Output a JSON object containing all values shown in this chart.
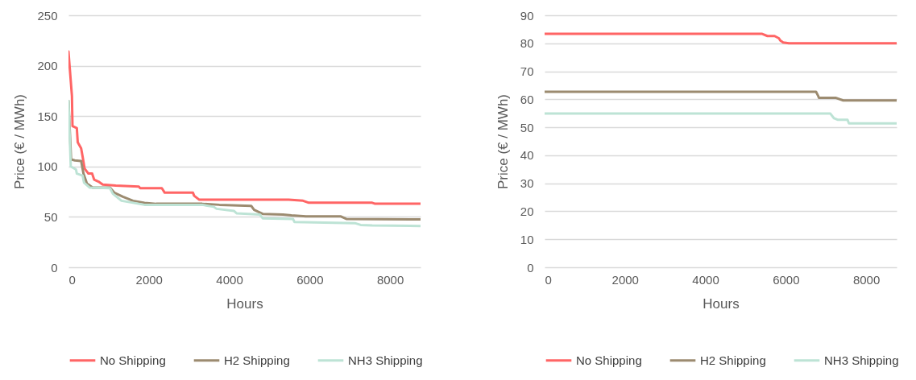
{
  "chart_data": [
    {
      "type": "line",
      "xlabel": "Hours",
      "ylabel": "Price (€ / MWh)",
      "xlim": [
        0,
        8760
      ],
      "xticks": [
        0,
        2000,
        4000,
        6000,
        8000
      ],
      "ylim": [
        0,
        250
      ],
      "yticks": [
        0,
        50,
        100,
        150,
        200,
        250
      ],
      "grid": "y",
      "legend": "bottom",
      "series": [
        {
          "name": "No Shipping",
          "color": "#ff6565",
          "x": [
            0,
            86,
            100,
            208,
            230,
            315,
            351,
            401,
            495,
            588,
            638,
            746,
            853,
            1176,
            1750,
            1785,
            2323,
            2395,
            3097,
            3126,
            3255,
            5478,
            5836,
            5980,
            7557,
            7629,
            8760
          ],
          "values": [
            214,
            170,
            140,
            138,
            124,
            118,
            110,
            98,
            93,
            93,
            87,
            85,
            82,
            81,
            80,
            78.5,
            78.5,
            74,
            74,
            71,
            67,
            67,
            66,
            64,
            64,
            63,
            63
          ]
        },
        {
          "name": "H2 Shipping",
          "color": "#9c8b70",
          "x": [
            0,
            65,
            158,
            315,
            373,
            459,
            602,
            1032,
            1140,
            1355,
            1606,
            1893,
            2180,
            3327,
            3757,
            4546,
            4618,
            4833,
            5335,
            5550,
            5908,
            6768,
            6912,
            8760
          ],
          "values": [
            165,
            107,
            106,
            105.5,
            93,
            83,
            79,
            79,
            74,
            70,
            66,
            64,
            63,
            63,
            62,
            61,
            57,
            53,
            52.3,
            51.5,
            50.6,
            50.6,
            48,
            47.5
          ]
        },
        {
          "name": "NH3 Shipping",
          "color": "#bde3d5",
          "x": [
            0,
            57,
            186,
            208,
            351,
            387,
            531,
            1032,
            1104,
            1319,
            1606,
            1893,
            3327,
            3614,
            3686,
            4116,
            4188,
            4762,
            4833,
            5586,
            5622,
            7127,
            7271,
            7557,
            8760
          ],
          "values": [
            165,
            100,
            97,
            93,
            91,
            84,
            79,
            78.5,
            73,
            66,
            64,
            62,
            62,
            60,
            58,
            56,
            53.5,
            52.3,
            48.6,
            48,
            45,
            43.8,
            42,
            41.5,
            41
          ]
        }
      ]
    },
    {
      "type": "line",
      "xlabel": "Hours",
      "ylabel": "Price (€ / MWh)",
      "xlim": [
        0,
        8760
      ],
      "xticks": [
        0,
        2000,
        4000,
        6000,
        8000
      ],
      "ylim": [
        0,
        90
      ],
      "yticks": [
        0,
        10,
        20,
        30,
        40,
        50,
        60,
        70,
        80,
        90
      ],
      "grid": "y",
      "legend": "bottom",
      "series": [
        {
          "name": "No Shipping",
          "color": "#ff6565",
          "x": [
            0,
            5402,
            5544,
            5722,
            5829,
            5864,
            5936,
            6078,
            8760
          ],
          "values": [
            83.4,
            83.4,
            82.6,
            82.6,
            81.8,
            81,
            80.3,
            80,
            80
          ]
        },
        {
          "name": "H2 Shipping",
          "color": "#9c8b70",
          "x": [
            0,
            6754,
            6804,
            6825,
            7252,
            7430,
            8760
          ],
          "values": [
            62.7,
            62.7,
            61.3,
            60.5,
            60.5,
            59.6,
            59.6
          ]
        },
        {
          "name": "NH3 Shipping",
          "color": "#bde3d5",
          "x": [
            0,
            7110,
            7202,
            7288,
            7537,
            7572,
            8760
          ],
          "values": [
            54.9,
            54.9,
            53.2,
            52.7,
            52.7,
            51.4,
            51.4
          ]
        }
      ]
    }
  ]
}
